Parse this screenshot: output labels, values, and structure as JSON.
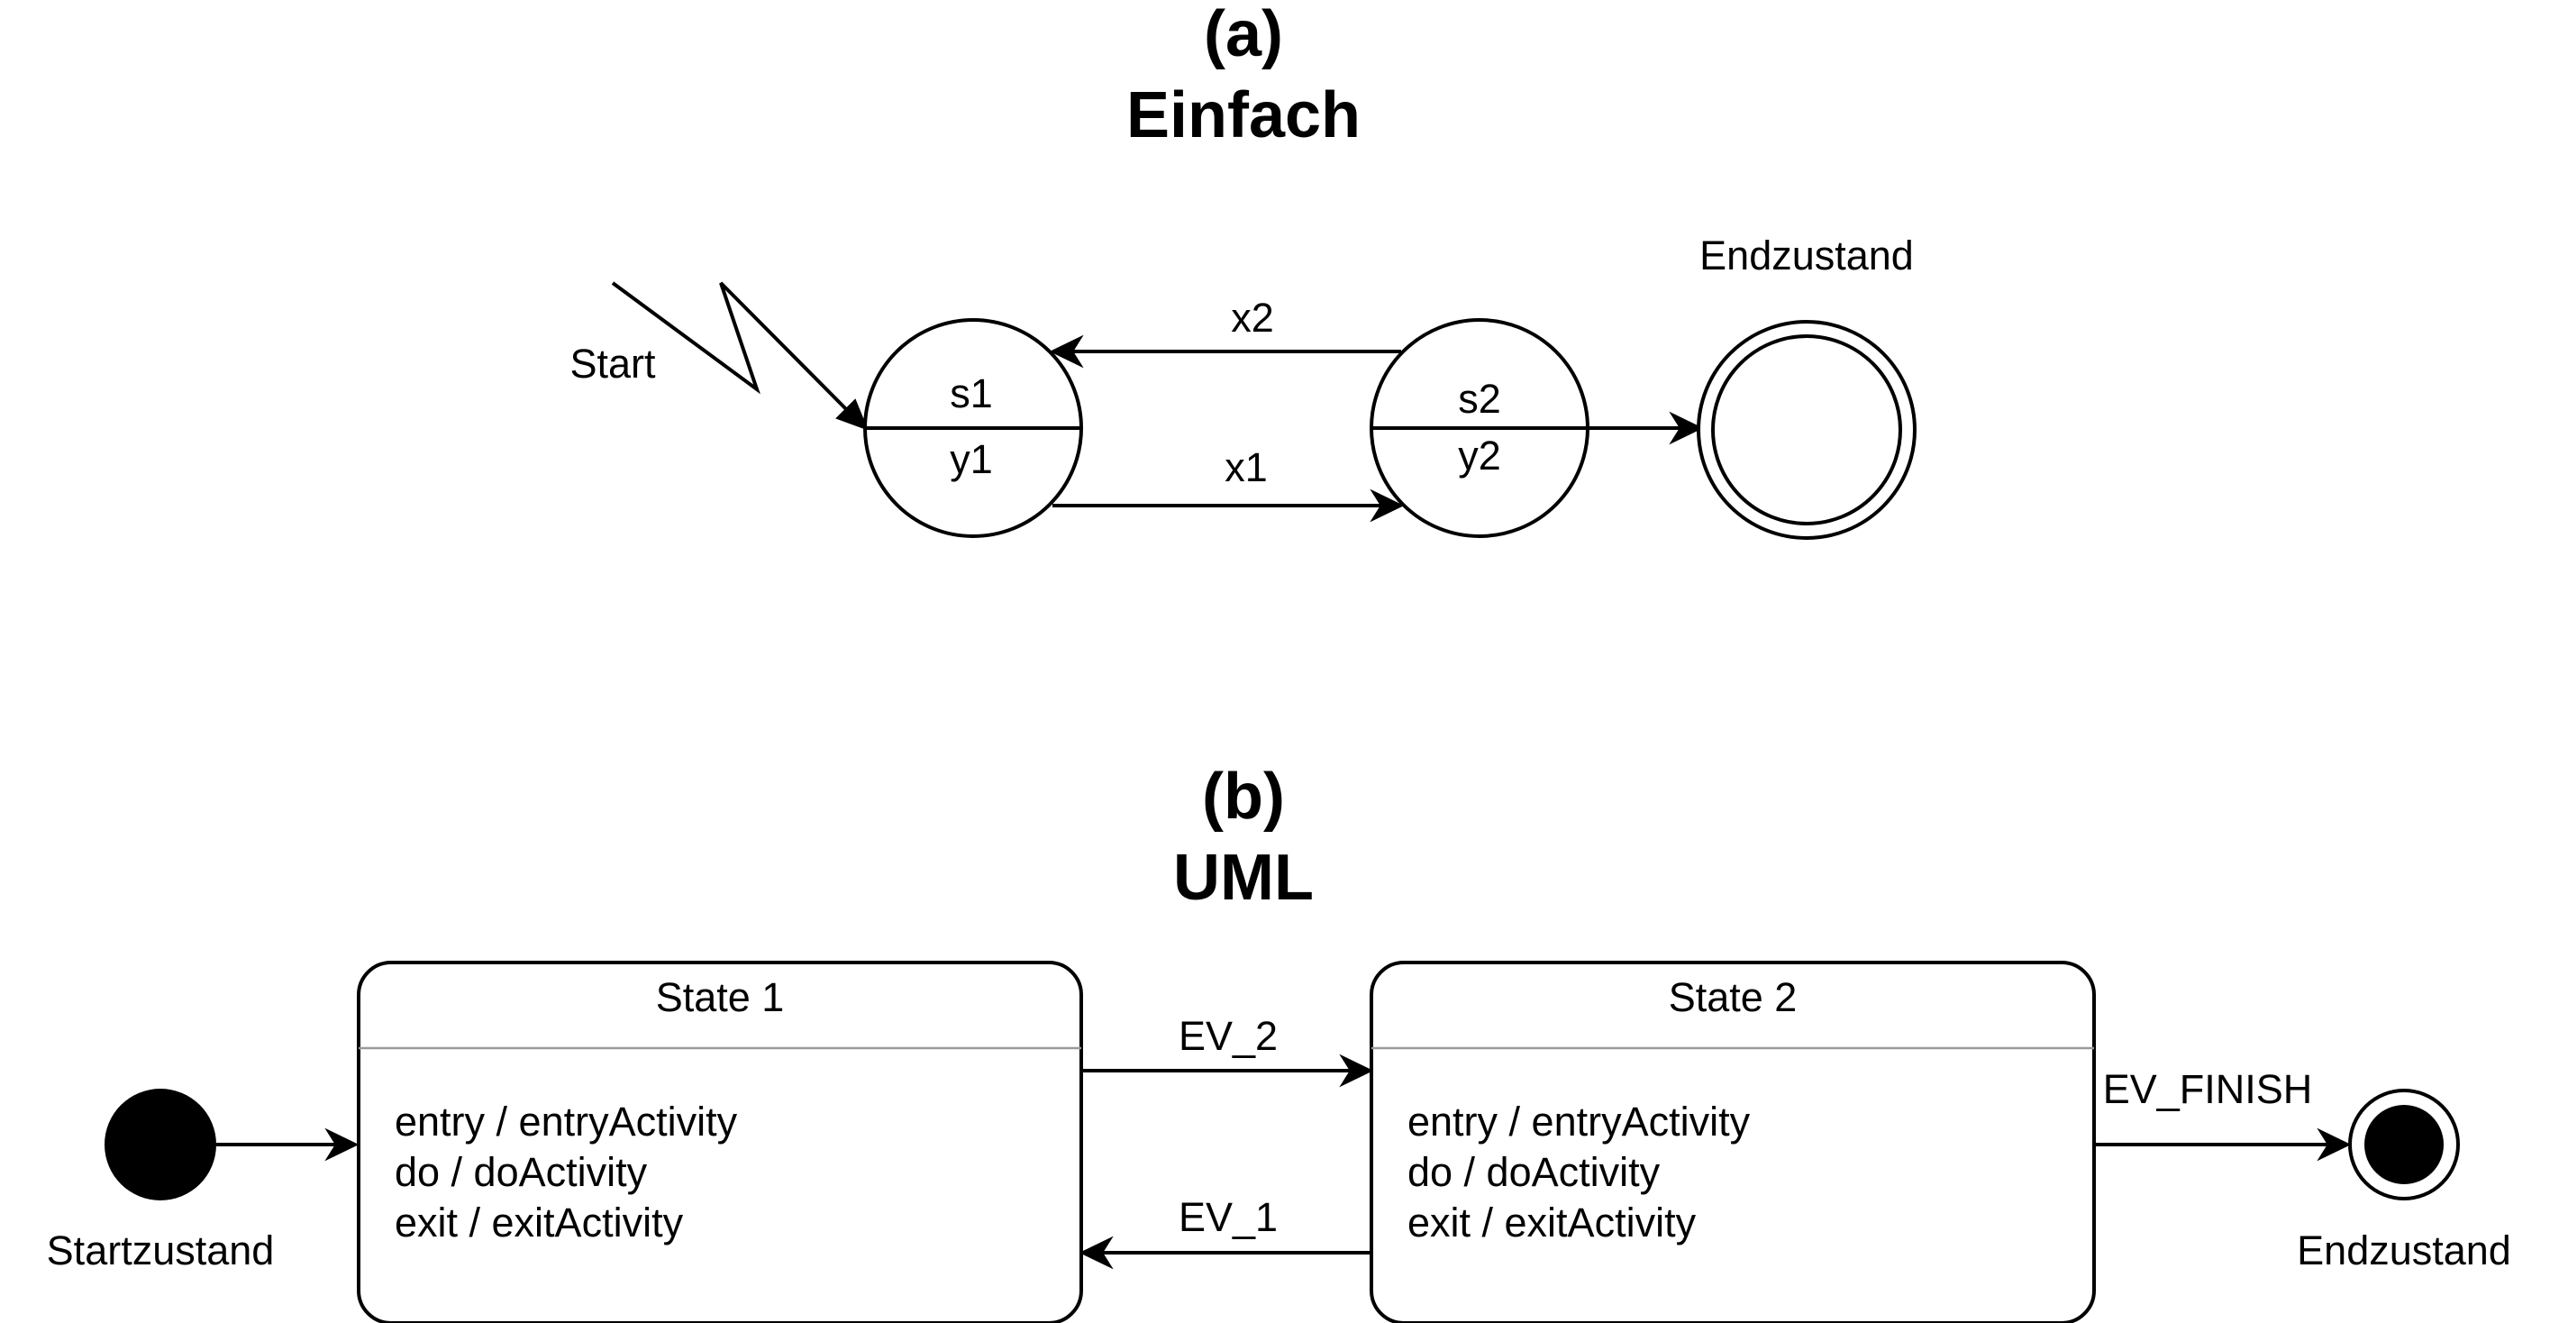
{
  "diagram_a": {
    "label": "(a)",
    "title": "Einfach",
    "start_label": "Start",
    "final_label": "Endzustand",
    "states": [
      {
        "name": "s1",
        "output": "y1"
      },
      {
        "name": "s2",
        "output": "y2"
      }
    ],
    "transitions": [
      {
        "from": "s1",
        "to": "s2",
        "label": "x1"
      },
      {
        "from": "s2",
        "to": "s1",
        "label": "x2"
      }
    ]
  },
  "diagram_b": {
    "label": "(b)",
    "title": "UML",
    "initial_label": "Startzustand",
    "final_label": "Endzustand",
    "states": [
      {
        "name": "State 1",
        "entry": "entry / entryActivity",
        "do": "do / doActivity",
        "exit": "exit / exitActivity"
      },
      {
        "name": "State 2",
        "entry": "entry / entryActivity",
        "do": "do / doActivity",
        "exit": "exit / exitActivity"
      }
    ],
    "transitions": [
      {
        "from": "State 1",
        "to": "State 2",
        "label": "EV_2"
      },
      {
        "from": "State 2",
        "to": "State 1",
        "label": "EV_1"
      },
      {
        "from": "State 2",
        "to": "final",
        "label": "EV_FINISH"
      }
    ]
  }
}
